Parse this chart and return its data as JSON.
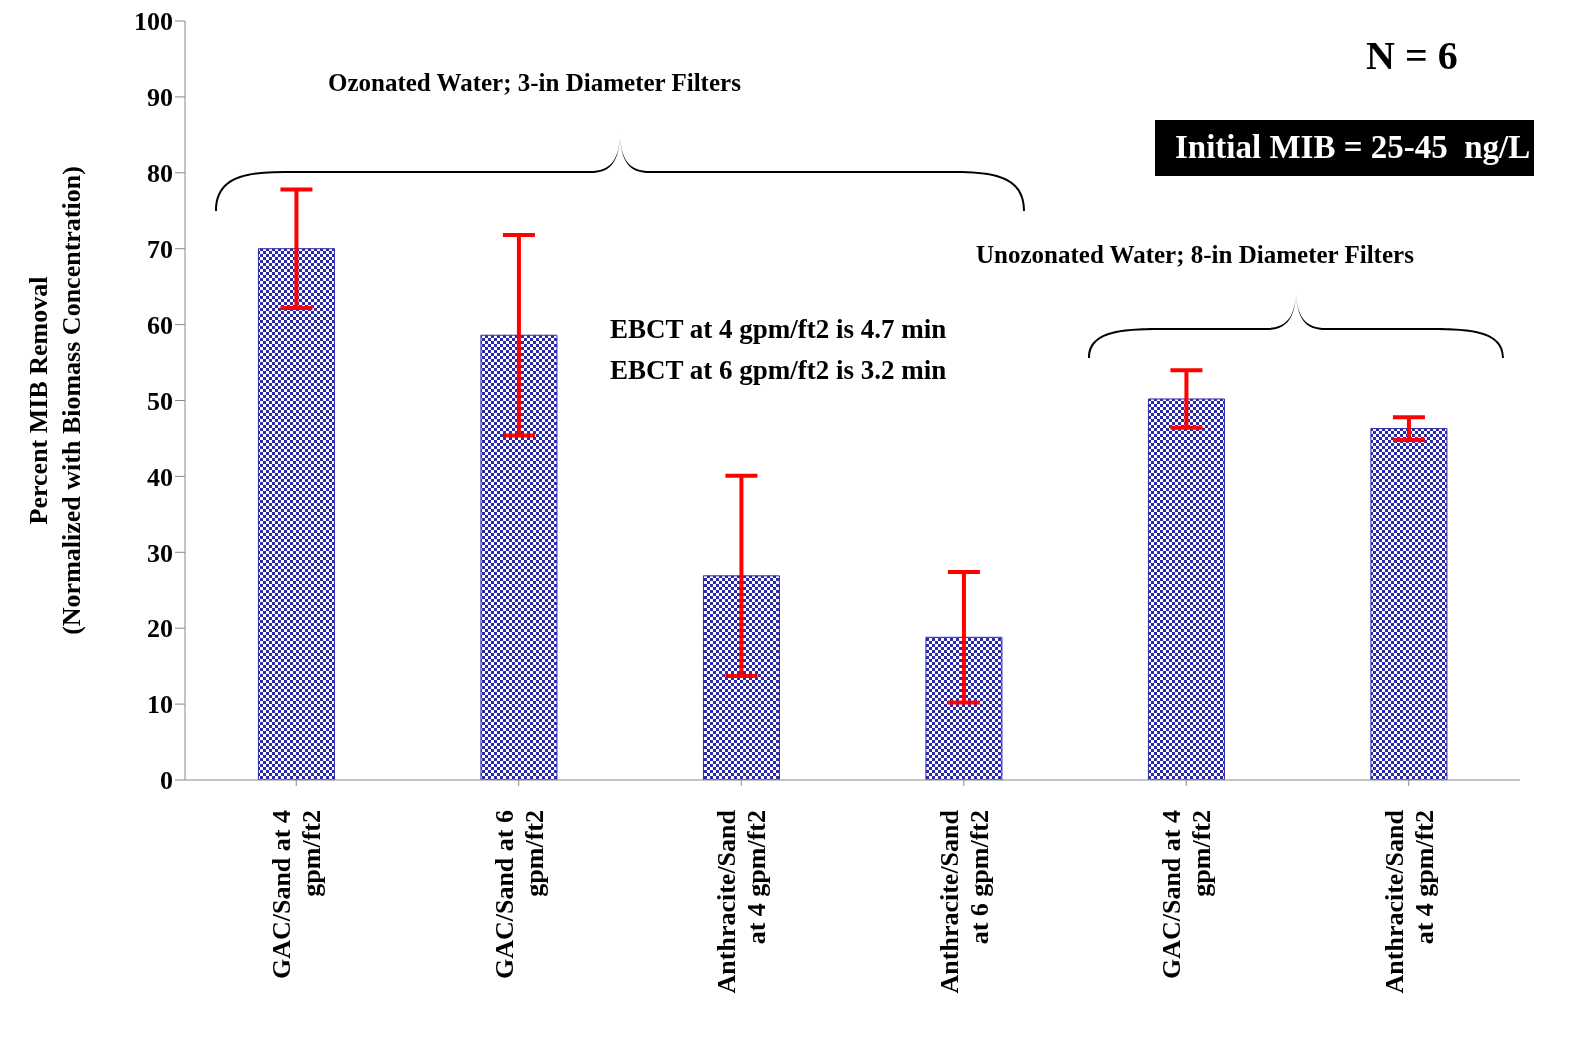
{
  "chart_data": {
    "type": "bar",
    "ylabel": "Percent MIB Removal\n(Normalized with Biomass Concentration)",
    "categories": [
      "GAC/Sand at 4 gpm/ft2",
      "GAC/Sand at 6 gpm/ft2",
      "Anthracite/Sand at 4 gpm/ft2",
      "Anthracite/Sand at 6 gpm/ft2",
      "GAC/Sand at 4 gpm/ft2",
      "Anthracite/Sand at 4 gpm/ft2"
    ],
    "values": [
      70,
      58.6,
      26.9,
      18.8,
      50.2,
      46.3
    ],
    "errors": [
      7.8,
      13.2,
      13.2,
      8.6,
      3.8,
      1.5
    ],
    "color": "#2a2aa8",
    "ylim": [
      0,
      100
    ],
    "yticks": [
      0,
      10,
      20,
      30,
      40,
      50,
      60,
      70,
      80,
      90,
      100
    ],
    "grid": false,
    "legend": false,
    "annotations": [
      "N = 6",
      "Initial MIB = 25-45  ng/L",
      "Ozonated Water; 3-in Diameter Filters",
      "Unozonated Water; 8-in Diameter Filters",
      "EBCT at 4 gpm/ft2 is 4.7 min",
      "EBCT at 6 gpm/ft2 is 3.2 min"
    ]
  }
}
